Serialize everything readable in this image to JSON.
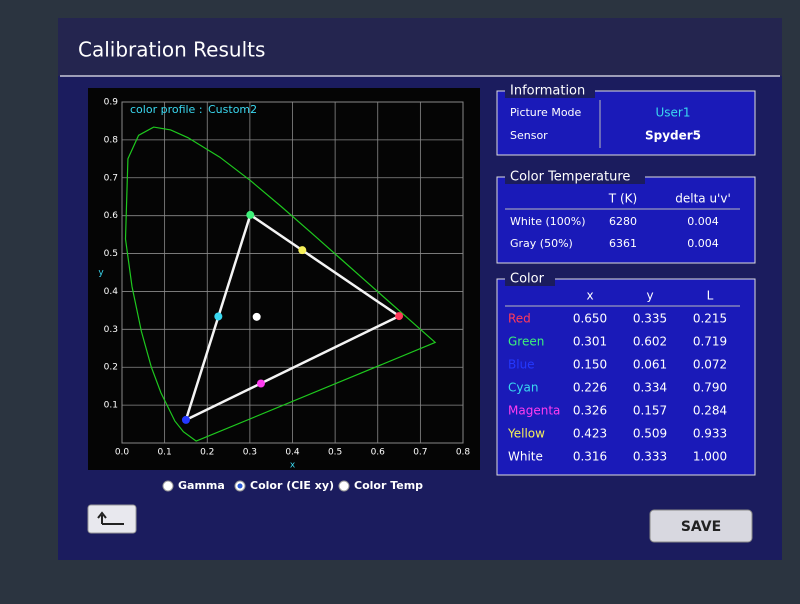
{
  "header": {
    "title": "Calibration Results"
  },
  "information": {
    "title": "Information",
    "rows": [
      [
        "Picture Mode",
        "User1"
      ],
      [
        "Sensor",
        "Spyder5"
      ]
    ]
  },
  "color_temperature": {
    "title": "Color Temperature",
    "headers": [
      "T (K)",
      "delta u'v'"
    ],
    "rows": [
      [
        "White (100%)",
        6280,
        0.004
      ],
      [
        "Gray (50%)",
        6361,
        0.004
      ]
    ]
  },
  "color_table": {
    "title": "Color",
    "headers": [
      "x",
      "y",
      "L"
    ]
  },
  "chart_data": {
    "type": "scatter",
    "annotation": "color profile :",
    "profile_name": "Custom2",
    "x_label": "x",
    "y_label": "y",
    "xlim": [
      0,
      0.8
    ],
    "ylim": [
      0,
      0.9
    ],
    "xticks": [
      {
        "value": 0,
        "label": "0.0"
      },
      0.1,
      0.2,
      0.3,
      0.4,
      0.5,
      0.6,
      0.7,
      0.8
    ],
    "yticks": [
      0.1,
      0.2,
      0.3,
      0.4,
      0.5,
      0.6,
      0.7,
      0.8,
      0.9
    ],
    "grid": true,
    "locus": {
      "color": "#1ec81e",
      "x": [
        0.1741,
        0.144,
        0.1241,
        0.0913,
        0.0687,
        0.0454,
        0.0235,
        0.0082,
        0.0139,
        0.0389,
        0.0743,
        0.1142,
        0.1547,
        0.2296,
        0.3016,
        0.3731,
        0.4441,
        0.5125,
        0.5752,
        0.627,
        0.6658,
        0.7347
      ],
      "y": [
        0.005,
        0.0297,
        0.0578,
        0.1327,
        0.2007,
        0.295,
        0.4127,
        0.5384,
        0.7502,
        0.812,
        0.8338,
        0.8262,
        0.8059,
        0.7543,
        0.6923,
        0.6245,
        0.5547,
        0.4866,
        0.4242,
        0.3725,
        0.334,
        0.2653
      ]
    },
    "series": [
      {
        "name": "Red",
        "color": "#ff3a5a",
        "x": [
          0.65
        ],
        "y": [
          0.335
        ],
        "L": [
          0.215
        ],
        "value_labels": {
          "x": "0.650",
          "y": "0.335",
          "L": "0.215"
        }
      },
      {
        "name": "Green",
        "color": "#3ef07a",
        "x": [
          0.301
        ],
        "y": [
          0.602
        ],
        "L": [
          0.719
        ],
        "value_labels": {
          "x": "0.301",
          "y": "0.602",
          "L": "0.719"
        }
      },
      {
        "name": "Blue",
        "color": "#2438ff",
        "x": [
          0.15
        ],
        "y": [
          0.061
        ],
        "L": [
          0.072
        ],
        "value_labels": {
          "x": "0.150",
          "y": "0.061",
          "L": "0.072"
        }
      },
      {
        "name": "Cyan",
        "color": "#3ad8f0",
        "x": [
          0.226
        ],
        "y": [
          0.334
        ],
        "L": [
          0.79
        ],
        "value_labels": {
          "x": "0.226",
          "y": "0.334",
          "L": "0.790"
        }
      },
      {
        "name": "Magenta",
        "color": "#ff3cf0",
        "x": [
          0.326
        ],
        "y": [
          0.157
        ],
        "L": [
          0.284
        ],
        "value_labels": {
          "x": "0.326",
          "y": "0.157",
          "L": "0.284"
        }
      },
      {
        "name": "Yellow",
        "color": "#f6f05a",
        "x": [
          0.423
        ],
        "y": [
          0.509
        ],
        "L": [
          0.933
        ],
        "value_labels": {
          "x": "0.423",
          "y": "0.509",
          "L": "0.933"
        }
      },
      {
        "name": "White",
        "color": "#ffffff",
        "x": [
          0.316
        ],
        "y": [
          0.333
        ],
        "L": [
          1
        ],
        "value_labels": {
          "x": "0.316",
          "y": "0.333",
          "L": "1.000"
        }
      }
    ]
  },
  "radio_options": [
    {
      "label": "Gamma",
      "selected": false
    },
    {
      "label": "Color (CIE xy)",
      "selected": true
    },
    {
      "label": "Color Temp",
      "selected": false
    }
  ],
  "buttons": {
    "save": "SAVE"
  }
}
